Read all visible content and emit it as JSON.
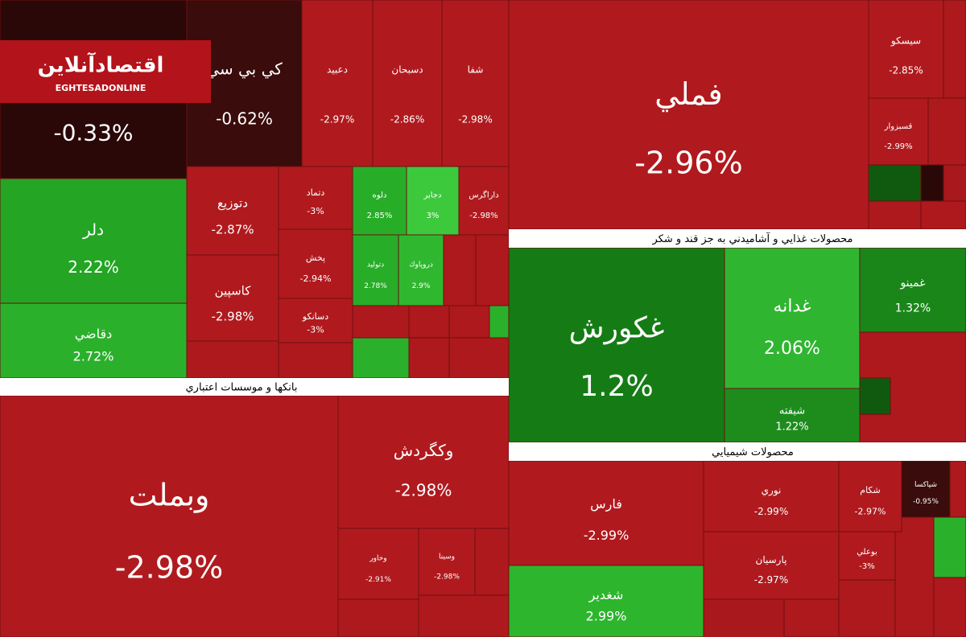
{
  "logo": {
    "title": "اقتصادآنلاین",
    "subtitle": "EGHTESADONLINE"
  },
  "sectors": [
    "بانكها و موسسات اعتباري",
    "محصولات غذايي و آشاميدني به جز قند و شكر",
    "محصولات شيميايي"
  ],
  "tiles": [
    {
      "change": "-0.33%",
      "color": "#2b0808"
    },
    {
      "name": "كي بي سي",
      "change": "-0.62%",
      "color": "#3a0c0c"
    },
    {
      "name": "دعبيد",
      "change": "-2.97%",
      "color": "#b01a1e"
    },
    {
      "name": "دسبحان",
      "change": "-2.86%",
      "color": "#b01a1e"
    },
    {
      "name": "شفا",
      "change": "-2.98%",
      "color": "#b01a1e"
    },
    {
      "name": "دلر",
      "change": "2.22%",
      "color": "#24a524"
    },
    {
      "name": "دقاضي",
      "change": "2.72%",
      "color": "#2bb02b"
    },
    {
      "name": "دتوزيع",
      "change": "-2.87%",
      "color": "#b01a1e"
    },
    {
      "name": "كاسپين",
      "change": "-2.98%",
      "color": "#b01a1e"
    },
    {
      "name": "دتماد",
      "change": "-3%",
      "color": "#b01a1e"
    },
    {
      "name": "پخش",
      "change": "-2.94%",
      "color": "#b01a1e"
    },
    {
      "name": "دسانكو",
      "change": "-3%",
      "color": "#b01a1e"
    },
    {
      "name": "دلوه",
      "change": "2.85%",
      "color": "#28ad28"
    },
    {
      "name": "دجابر",
      "change": "3%",
      "color": "#3cc93c"
    },
    {
      "name": "داراگرس",
      "change": "-2.98%",
      "color": "#b01a1e"
    },
    {
      "name": "دتوليد",
      "change": "2.78%",
      "color": "#28ad28"
    },
    {
      "name": "دروپاوك",
      "change": "2.9%",
      "color": "#2fb82f"
    },
    {
      "name": "وبملت",
      "change": "-2.98%",
      "color": "#b01a1e"
    },
    {
      "name": "وكگردش",
      "change": "-2.98%",
      "color": "#b01a1e"
    },
    {
      "name": "وخاور",
      "change": "-2.91%",
      "color": "#b01a1e"
    },
    {
      "name": "وسينا",
      "change": "-2.98%",
      "color": "#b01a1e"
    },
    {
      "name": "فملي",
      "change": "-2.96%",
      "color": "#b01a1e"
    },
    {
      "name": "سيسكو",
      "change": "-2.85%",
      "color": "#b01a1e"
    },
    {
      "name": "قسبزوار",
      "change": "-2.99%",
      "color": "#b01a1e"
    },
    {
      "name": "غكورش",
      "change": "1.2%",
      "color": "#157c15"
    },
    {
      "name": "غدانه",
      "change": "2.06%",
      "color": "#30b530"
    },
    {
      "name": "شيفته",
      "change": "1.22%",
      "color": "#1d8c1d"
    },
    {
      "name": "غمينو",
      "change": "1.32%",
      "color": "#1a861a"
    },
    {
      "name": "فارس",
      "change": "-2.99%",
      "color": "#b01a1e"
    },
    {
      "name": "شغدير",
      "change": "2.99%",
      "color": "#2db52d"
    },
    {
      "name": "نوري",
      "change": "-2.99%",
      "color": "#b01a1e"
    },
    {
      "name": "پارسيان",
      "change": "-2.97%",
      "color": "#b01a1e"
    },
    {
      "name": "شكام",
      "change": "-2.97%",
      "color": "#b01a1e"
    },
    {
      "name": "شپاكسا",
      "change": "-0.95%",
      "color": "#3a0c0c"
    },
    {
      "name": "بوعلي",
      "change": "-3%",
      "color": "#b01a1e"
    }
  ]
}
